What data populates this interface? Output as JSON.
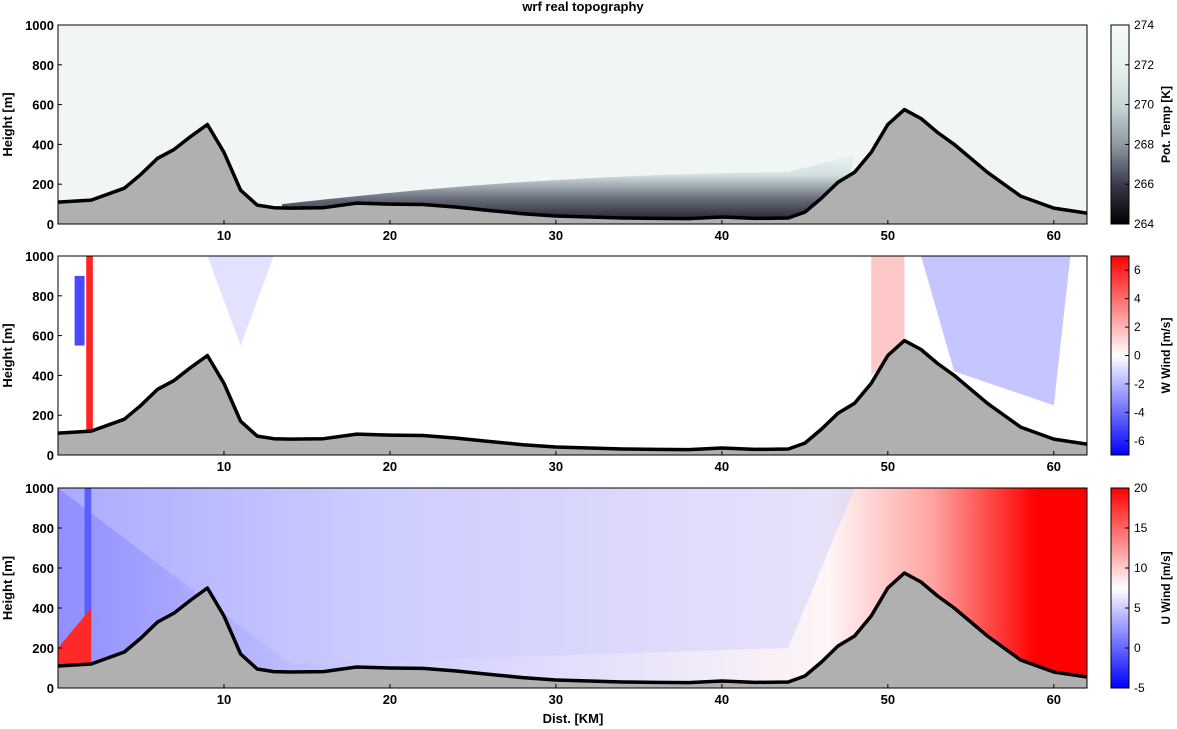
{
  "title": "wrf real topography",
  "xlabel": "Dist. [KM]",
  "chart_data": [
    {
      "type": "heatmap",
      "panel": "potential-temperature",
      "ylabel": "Height [m]",
      "colorbar_label": "Pot. Temp [K]",
      "xlim": [
        0,
        62
      ],
      "ylim": [
        0,
        1000
      ],
      "x_ticks": [
        10,
        20,
        30,
        40,
        50,
        60
      ],
      "y_ticks": [
        0,
        200,
        400,
        600,
        800,
        1000
      ],
      "colorbar_range": [
        264,
        274
      ],
      "colorbar_ticks": [
        264,
        266,
        268,
        270,
        272,
        274
      ],
      "colormap": [
        "#000000",
        "#3a3a4f",
        "#8f9aa2",
        "#c9d9d8",
        "#e8f1f0",
        "#f6fbfa"
      ],
      "background_value": 273
    },
    {
      "type": "heatmap",
      "panel": "vertical-wind",
      "ylabel": "Height [m]",
      "colorbar_label": "W Wind [m/s]",
      "xlim": [
        0,
        62
      ],
      "ylim": [
        0,
        1000
      ],
      "x_ticks": [
        10,
        20,
        30,
        40,
        50,
        60
      ],
      "y_ticks": [
        0,
        200,
        400,
        600,
        800,
        1000
      ],
      "colorbar_range": [
        -7,
        7
      ],
      "colorbar_ticks": [
        -6,
        -4,
        -2,
        0,
        2,
        4,
        6
      ],
      "colormap": [
        "#0000ff",
        "#ffffff",
        "#ff0000"
      ],
      "background_value": 0
    },
    {
      "type": "heatmap",
      "panel": "horizontal-wind",
      "ylabel": "Height [m]",
      "colorbar_label": "U Wind [m/s]",
      "xlim": [
        0,
        62
      ],
      "ylim": [
        0,
        1000
      ],
      "x_ticks": [
        10,
        20,
        30,
        40,
        50,
        60
      ],
      "y_ticks": [
        0,
        200,
        400,
        600,
        800,
        1000
      ],
      "colorbar_range": [
        -5,
        20
      ],
      "colorbar_ticks": [
        -5,
        0,
        5,
        10,
        15,
        20
      ],
      "colormap": [
        "#0000ff",
        "#ffffff",
        "#ff0000"
      ],
      "background_value": 8
    }
  ],
  "topography": {
    "x": [
      0,
      2,
      4,
      5,
      6,
      7,
      8,
      9,
      10,
      11,
      12,
      13,
      14,
      16,
      18,
      20,
      22,
      24,
      26,
      28,
      30,
      32,
      34,
      36,
      38,
      40,
      42,
      44,
      45,
      46,
      47,
      48,
      49,
      50,
      51,
      52,
      53,
      54,
      56,
      58,
      60,
      62
    ],
    "height": [
      110,
      120,
      180,
      250,
      330,
      375,
      440,
      500,
      360,
      170,
      95,
      82,
      80,
      82,
      105,
      100,
      98,
      85,
      68,
      52,
      40,
      35,
      30,
      28,
      27,
      35,
      28,
      30,
      60,
      130,
      210,
      260,
      360,
      500,
      575,
      530,
      460,
      400,
      260,
      140,
      80,
      55
    ],
    "fill": "#b0b0b0"
  }
}
